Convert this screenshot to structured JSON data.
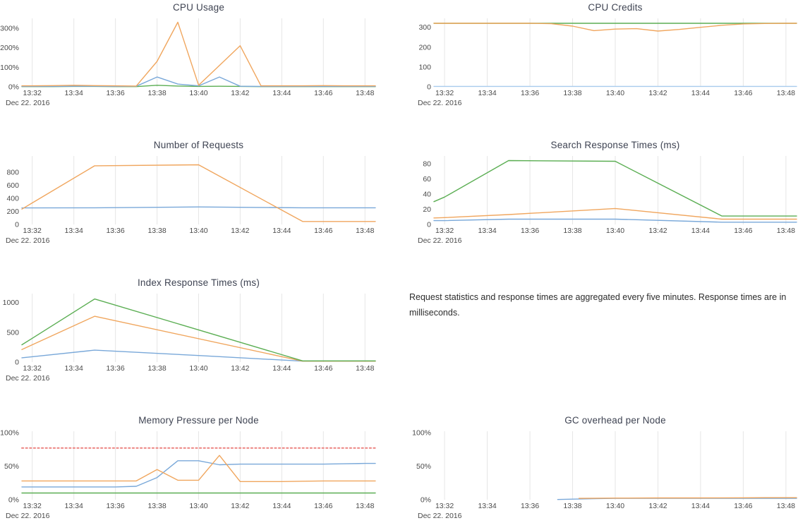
{
  "page": {
    "background": "#ffffff"
  },
  "palette": {
    "blue": "#79a8d9",
    "orange": "#f0a65e",
    "green": "#5bae53",
    "red_dotted": "#ec8380",
    "grid": "#e6e6e6",
    "axis_text": "#4a4a4a",
    "title_text": "#3e4352"
  },
  "x_axis": {
    "tick_labels": [
      "13:32",
      "13:34",
      "13:36",
      "13:38",
      "13:40",
      "13:42",
      "13:44",
      "13:46",
      "13:48"
    ],
    "tick_minutes": [
      32,
      34,
      36,
      38,
      40,
      42,
      44,
      46,
      48
    ],
    "date_label": "Dec 22. 2016"
  },
  "annotation": {
    "text": "Request statistics and response times are aggregated every five minutes. Response times are in milliseconds."
  },
  "chart_data": [
    {
      "id": "chart-cpu-usage",
      "type": "line",
      "title": "CPU Usage",
      "ylim": [
        0,
        350
      ],
      "grid": "vertical",
      "legend": "none",
      "yticks": [
        {
          "v": 0,
          "label": "0%"
        },
        {
          "v": 100,
          "label": "100%"
        },
        {
          "v": 200,
          "label": "200%"
        },
        {
          "v": 300,
          "label": "300%"
        }
      ],
      "series": [
        {
          "name": "green",
          "color": "#5bae53",
          "x": [
            31.5,
            32,
            33,
            34,
            35,
            36,
            37,
            38,
            39,
            40,
            41,
            42,
            43,
            44,
            45,
            46,
            47,
            48,
            48.5
          ],
          "y": [
            1,
            1,
            1,
            2,
            2,
            1,
            1,
            8,
            4,
            2,
            3,
            2,
            1,
            1,
            1,
            1,
            1,
            1,
            1
          ]
        },
        {
          "name": "blue",
          "color": "#79a8d9",
          "x": [
            31.5,
            32,
            33,
            34,
            35,
            36,
            37,
            38,
            39,
            40,
            41,
            42,
            43,
            44,
            45,
            46,
            47,
            48,
            48.5
          ],
          "y": [
            2,
            2,
            2,
            3,
            3,
            2,
            3,
            50,
            14,
            5,
            50,
            3,
            2,
            2,
            2,
            2,
            2,
            2,
            2
          ]
        },
        {
          "name": "orange",
          "color": "#f0a65e",
          "x": [
            31.5,
            32,
            33,
            34,
            35,
            36,
            37,
            38,
            39,
            40,
            41,
            42,
            43,
            44,
            45,
            46,
            47,
            48,
            48.5
          ],
          "y": [
            5,
            5,
            6,
            8,
            6,
            5,
            4,
            130,
            330,
            8,
            109,
            210,
            5,
            5,
            5,
            6,
            5,
            5,
            5
          ]
        }
      ]
    },
    {
      "id": "chart-cpu-credits",
      "type": "line",
      "title": "CPU Credits",
      "ylim": [
        0,
        345
      ],
      "grid": "vertical",
      "legend": "none",
      "yticks": [
        {
          "v": 0,
          "label": "0"
        },
        {
          "v": 100,
          "label": "100"
        },
        {
          "v": 200,
          "label": "200"
        },
        {
          "v": 300,
          "label": "300"
        }
      ],
      "series": [
        {
          "name": "blue",
          "color": "#a8cced",
          "x": [
            31.5,
            48.5
          ],
          "y": [
            2,
            2
          ]
        },
        {
          "name": "green",
          "color": "#5bae53",
          "x": [
            31.5,
            48.5
          ],
          "y": [
            320,
            320
          ]
        },
        {
          "name": "orange",
          "color": "#f0a65e",
          "x": [
            31.5,
            32,
            33,
            34,
            35,
            36,
            37,
            38,
            39,
            40,
            41,
            42,
            43,
            44,
            45,
            46,
            47,
            48,
            48.5
          ],
          "y": [
            320,
            320,
            320,
            320,
            320,
            320,
            318,
            306,
            283,
            291,
            293,
            281,
            289,
            300,
            310,
            317,
            319,
            320,
            320
          ]
        }
      ]
    },
    {
      "id": "chart-number-of-requests",
      "type": "line",
      "title": "Number of Requests",
      "ylim": [
        0,
        1050
      ],
      "grid": "vertical",
      "legend": "none",
      "yticks": [
        {
          "v": 0,
          "label": "0"
        },
        {
          "v": 200,
          "label": "200"
        },
        {
          "v": 400,
          "label": "400"
        },
        {
          "v": 600,
          "label": "600"
        },
        {
          "v": 800,
          "label": "800"
        }
      ],
      "series": [
        {
          "name": "blue",
          "color": "#79a8d9",
          "x": [
            31.5,
            35,
            40,
            45,
            48.5
          ],
          "y": [
            253,
            256,
            268,
            255,
            255
          ]
        },
        {
          "name": "orange",
          "color": "#f0a65e",
          "x": [
            31.5,
            32,
            35,
            40,
            45,
            48.5
          ],
          "y": [
            235,
            330,
            900,
            915,
            45,
            45
          ]
        }
      ]
    },
    {
      "id": "chart-search-response-times",
      "type": "line",
      "title": "Search Response Times (ms)",
      "ylim": [
        0,
        90
      ],
      "grid": "vertical",
      "legend": "none",
      "yticks": [
        {
          "v": 0,
          "label": "0"
        },
        {
          "v": 20,
          "label": "20"
        },
        {
          "v": 40,
          "label": "40"
        },
        {
          "v": 60,
          "label": "60"
        },
        {
          "v": 80,
          "label": "80"
        }
      ],
      "series": [
        {
          "name": "blue",
          "color": "#79a8d9",
          "x": [
            31.5,
            32,
            35,
            40,
            45,
            48.5
          ],
          "y": [
            5,
            5,
            7,
            7,
            3,
            3
          ]
        },
        {
          "name": "orange",
          "color": "#f0a65e",
          "x": [
            31.5,
            32,
            35,
            40,
            45,
            48.5
          ],
          "y": [
            8.5,
            9,
            13,
            21,
            7,
            7
          ]
        },
        {
          "name": "green",
          "color": "#5bae53",
          "x": [
            31.5,
            32,
            35,
            40,
            45,
            48.5
          ],
          "y": [
            30,
            36,
            84,
            83,
            11,
            11
          ]
        }
      ]
    },
    {
      "id": "chart-index-response-times",
      "type": "line",
      "title": "Index Response Times (ms)",
      "ylim": [
        0,
        1150
      ],
      "grid": "vertical",
      "legend": "none",
      "yticks": [
        {
          "v": 0,
          "label": "0"
        },
        {
          "v": 500,
          "label": "500"
        },
        {
          "v": 1000,
          "label": "1000"
        }
      ],
      "series": [
        {
          "name": "blue",
          "color": "#79a8d9",
          "x": [
            31.5,
            32,
            35,
            40,
            45,
            48.5
          ],
          "y": [
            72,
            90,
            200,
            110,
            15,
            15
          ]
        },
        {
          "name": "orange",
          "color": "#f0a65e",
          "x": [
            31.5,
            32,
            35,
            45,
            48.5
          ],
          "y": [
            210,
            290,
            770,
            15,
            15
          ]
        },
        {
          "name": "green",
          "color": "#5bae53",
          "x": [
            31.5,
            32,
            35,
            45,
            48.5
          ],
          "y": [
            290,
            400,
            1060,
            20,
            20
          ]
        }
      ]
    },
    {
      "id": "chart-memory-pressure",
      "type": "line",
      "title": "Memory Pressure per Node",
      "ylim": [
        0,
        102
      ],
      "grid": "vertical",
      "legend": "none",
      "yticks": [
        {
          "v": 0,
          "label": "0%"
        },
        {
          "v": 50,
          "label": "50%"
        },
        {
          "v": 100,
          "label": "100%"
        }
      ],
      "series": [
        {
          "name": "threshold",
          "color": "#ec8380",
          "dash": "dotted",
          "x": [
            31.5,
            48.5
          ],
          "y": [
            77,
            77
          ]
        },
        {
          "name": "green",
          "color": "#5bae53",
          "x": [
            31.5,
            48.5
          ],
          "y": [
            10,
            10
          ]
        },
        {
          "name": "blue",
          "color": "#79a8d9",
          "x": [
            31.5,
            32,
            33,
            34,
            35,
            36,
            37,
            38,
            39,
            40,
            41,
            42,
            43,
            44,
            45,
            46,
            47,
            48,
            48.5
          ],
          "y": [
            19,
            19,
            19,
            19,
            19,
            19,
            20,
            33,
            58,
            58,
            52,
            53,
            53,
            53,
            53,
            53,
            53.5,
            54,
            54
          ]
        },
        {
          "name": "orange",
          "color": "#f0a65e",
          "x": [
            31.5,
            32,
            33,
            34,
            35,
            36,
            37,
            38,
            39,
            40,
            41,
            42,
            43,
            44,
            45,
            46,
            47,
            48,
            48.5
          ],
          "y": [
            28,
            28,
            28,
            28,
            28,
            28,
            28,
            45,
            29,
            29,
            66,
            27,
            27,
            27,
            27.5,
            28,
            28,
            28,
            28
          ]
        }
      ]
    },
    {
      "id": "chart-gc-overhead",
      "type": "line",
      "title": "GC overhead per Node",
      "ylim": [
        0,
        102
      ],
      "grid": "vertical",
      "legend": "none",
      "yticks": [
        {
          "v": 0,
          "label": "0%"
        },
        {
          "v": 50,
          "label": "50%"
        },
        {
          "v": 100,
          "label": "100%"
        }
      ],
      "series": [
        {
          "name": "blue",
          "color": "#79a8d9",
          "x": [
            37.3,
            38,
            39,
            40,
            42,
            44,
            46,
            48.5
          ],
          "y": [
            0.3,
            0.8,
            1.5,
            2,
            2,
            2,
            2,
            2
          ]
        },
        {
          "name": "orange",
          "color": "#f0a65e",
          "x": [
            38.3,
            39,
            40,
            42,
            44,
            46,
            47,
            48.5
          ],
          "y": [
            2,
            2.2,
            2.4,
            2.6,
            2.6,
            2.8,
            3,
            3
          ]
        }
      ]
    }
  ]
}
